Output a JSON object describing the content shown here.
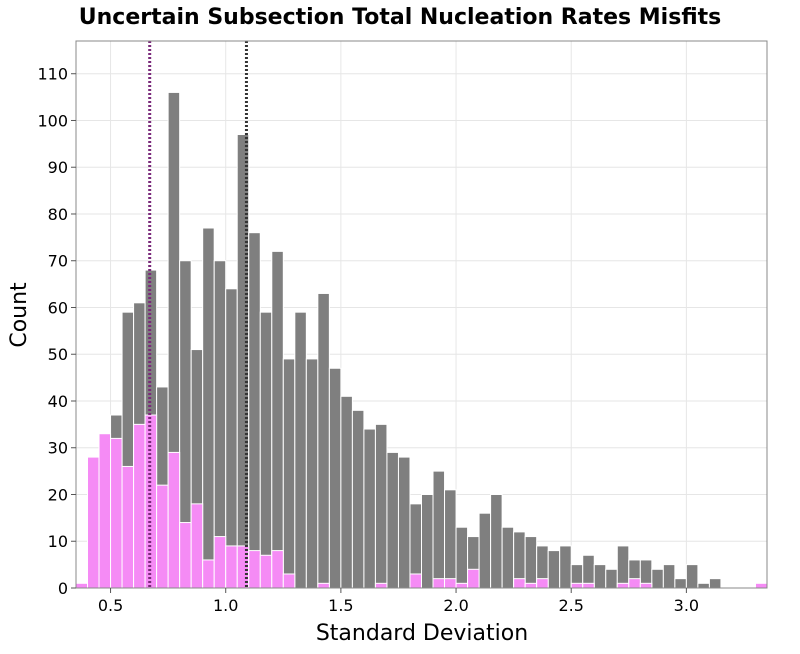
{
  "chart_data": {
    "type": "bar",
    "title": "Uncertain Subsection Total Nucleation Rates Misfits",
    "xlabel": "Standard Deviation",
    "ylabel": "Count",
    "xlim": [
      0.35,
      3.35
    ],
    "ylim": [
      0,
      117
    ],
    "bin_width": 0.05,
    "x_ticks": [
      0.5,
      1.0,
      1.5,
      2.0,
      2.5,
      3.0
    ],
    "x_tick_labels": [
      "0.5",
      "1.0",
      "1.5",
      "2.0",
      "2.5",
      "3.0"
    ],
    "y_ticks": [
      0,
      10,
      20,
      30,
      40,
      50,
      60,
      70,
      80,
      90,
      100,
      110
    ],
    "y_tick_labels": [
      "0",
      "10",
      "20",
      "30",
      "40",
      "50",
      "60",
      "70",
      "80",
      "90",
      "100",
      "110"
    ],
    "grid": true,
    "series": [
      {
        "color": "#7f7f7f",
        "bin_starts": [
          0.35,
          0.4,
          0.45,
          0.5,
          0.55,
          0.6,
          0.65,
          0.7,
          0.75,
          0.8,
          0.85,
          0.9,
          0.95,
          1.0,
          1.05,
          1.1,
          1.15,
          1.2,
          1.25,
          1.3,
          1.35,
          1.4,
          1.45,
          1.5,
          1.55,
          1.6,
          1.65,
          1.7,
          1.75,
          1.8,
          1.85,
          1.9,
          1.95,
          2.0,
          2.05,
          2.1,
          2.15,
          2.2,
          2.25,
          2.3,
          2.35,
          2.4,
          2.45,
          2.5,
          2.55,
          2.6,
          2.65,
          2.7,
          2.75,
          2.8,
          2.85,
          2.9,
          2.95,
          3.0,
          3.05,
          3.1,
          3.15,
          3.2,
          3.25,
          3.3
        ],
        "values": [
          1,
          28,
          33,
          37,
          59,
          61,
          68,
          43,
          106,
          70,
          51,
          77,
          70,
          64,
          97,
          76,
          59,
          72,
          49,
          59,
          49,
          63,
          47,
          41,
          38,
          34,
          35,
          29,
          28,
          18,
          20,
          25,
          21,
          13,
          11,
          16,
          20,
          13,
          12,
          11,
          9,
          8,
          9,
          5,
          7,
          5,
          4,
          9,
          6,
          6,
          4,
          5,
          2,
          5,
          1,
          2,
          0,
          0,
          0,
          1
        ]
      },
      {
        "color": "#f58bf5",
        "bin_starts": [
          0.35,
          0.4,
          0.45,
          0.5,
          0.55,
          0.6,
          0.65,
          0.7,
          0.75,
          0.8,
          0.85,
          0.9,
          0.95,
          1.0,
          1.05,
          1.1,
          1.15,
          1.2,
          1.25,
          1.3,
          1.35,
          1.4,
          1.45,
          1.5,
          1.55,
          1.6,
          1.65,
          1.7,
          1.75,
          1.8,
          1.85,
          1.9,
          1.95,
          2.0,
          2.05,
          2.1,
          2.15,
          2.2,
          2.25,
          2.3,
          2.35,
          2.4,
          2.45,
          2.5,
          2.55,
          2.6,
          2.65,
          2.7,
          2.75,
          2.8,
          2.85,
          2.9,
          2.95,
          3.0,
          3.05,
          3.1,
          3.15,
          3.2,
          3.25,
          3.3
        ],
        "values": [
          1,
          28,
          33,
          32,
          26,
          35,
          37,
          22,
          29,
          14,
          18,
          6,
          11,
          9,
          9,
          8,
          7,
          8,
          3,
          0,
          0,
          1,
          0,
          0,
          0,
          0,
          1,
          0,
          0,
          3,
          0,
          2,
          2,
          1,
          4,
          0,
          0,
          0,
          2,
          1,
          2,
          0,
          0,
          1,
          1,
          0,
          0,
          1,
          2,
          1,
          0,
          0,
          0,
          0,
          0,
          0,
          0,
          0,
          0,
          1
        ]
      }
    ],
    "reference_lines": [
      {
        "x": 0.67,
        "color": "#7a2a7a",
        "style": "dotted"
      },
      {
        "x": 1.09,
        "color": "#333333",
        "style": "dotted"
      }
    ]
  }
}
